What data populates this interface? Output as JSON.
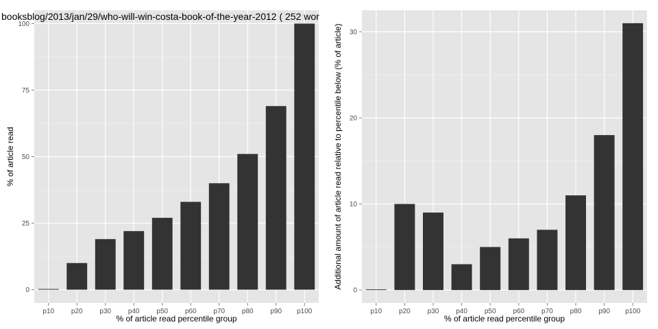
{
  "title": "booksblog/2013/jan/29/who-will-win-costa-book-of-the-year-2012 ( 252 wor",
  "colors": {
    "panel_bg": "#e5e5e5",
    "grid_major": "#ffffff",
    "bar_fill": "#333333",
    "tick_text": "#4d4d4d"
  },
  "chart_data": [
    {
      "type": "bar",
      "title": "booksblog/2013/jan/29/who-will-win-costa-book-of-the-year-2012 ( 252 wor",
      "xlabel": "% of article read percentile group",
      "ylabel": "% of article read",
      "categories": [
        "p10",
        "p20",
        "p30",
        "p40",
        "p50",
        "p60",
        "p70",
        "p80",
        "p90",
        "p100"
      ],
      "values": [
        0,
        10,
        19,
        22,
        27,
        33,
        40,
        51,
        69,
        100
      ],
      "ylim": [
        -5,
        105
      ],
      "yticks": [
        0,
        25,
        50,
        75,
        100
      ],
      "ytick_labels": [
        "0",
        "25",
        "50",
        "75",
        "100"
      ],
      "grid": true
    },
    {
      "type": "bar",
      "title": "",
      "xlabel": "% of article read percentile group",
      "ylabel": "Additional amount of article read relative to percentile below (% of article)",
      "categories": [
        "p10",
        "p20",
        "p30",
        "p40",
        "p50",
        "p60",
        "p70",
        "p80",
        "p90",
        "p100"
      ],
      "values": [
        0,
        10,
        9,
        3,
        5,
        6,
        7,
        11,
        18,
        31
      ],
      "ylim": [
        -1.5,
        32.5
      ],
      "yticks": [
        0,
        10,
        20,
        30
      ],
      "ytick_labels": [
        "0",
        "10",
        "20",
        "30"
      ],
      "grid": true
    }
  ]
}
